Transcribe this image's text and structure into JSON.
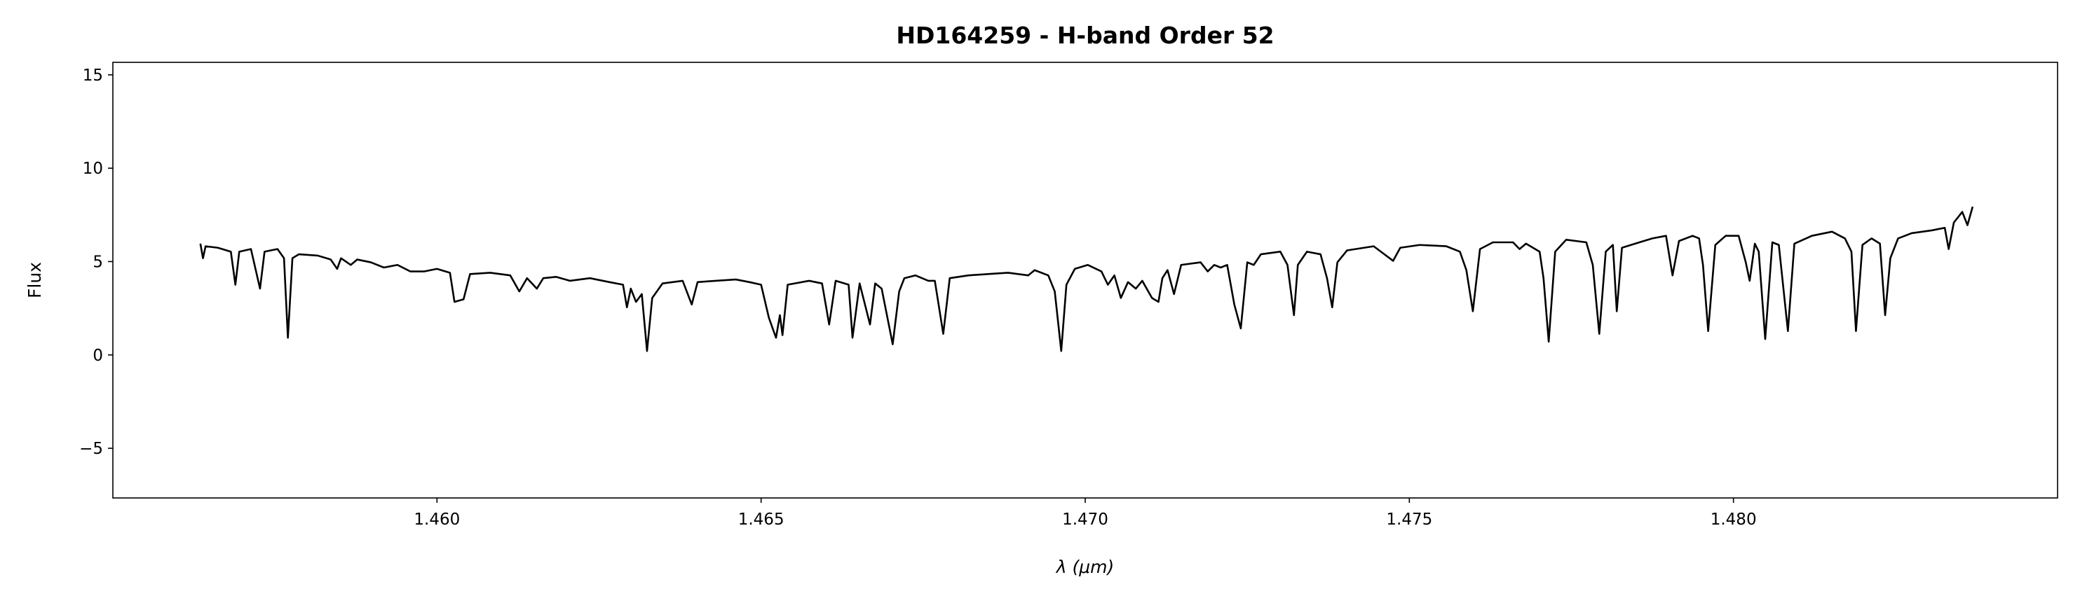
{
  "chart_data": {
    "type": "line",
    "title": "HD164259 - H-band Order 52",
    "xlabel": "λ (μm)",
    "ylabel": "Flux",
    "xlim": [
      1.455,
      1.485
    ],
    "ylim": [
      -7.66,
      15.67
    ],
    "xticks": [
      {
        "value": 1.46,
        "label": "1.460"
      },
      {
        "value": 1.465,
        "label": "1.465"
      },
      {
        "value": 1.47,
        "label": "1.470"
      },
      {
        "value": 1.475,
        "label": "1.475"
      },
      {
        "value": 1.48,
        "label": "1.480"
      }
    ],
    "yticks": [
      {
        "value": -5,
        "label": "−5"
      },
      0,
      5,
      10,
      15
    ],
    "grid": false,
    "series": [
      {
        "color": "#000000",
        "x": [
          1.45635,
          1.45639,
          1.45643,
          1.45662,
          1.45682,
          1.45689,
          1.45695,
          1.45713,
          1.45727,
          1.45734,
          1.45754,
          1.45764,
          1.4577,
          1.45777,
          1.45787,
          1.45816,
          1.45836,
          1.45846,
          1.45852,
          1.45867,
          1.45877,
          1.45898,
          1.45918,
          1.45939,
          1.45959,
          1.4598,
          1.46,
          1.4602,
          1.46027,
          1.46041,
          1.46051,
          1.46082,
          1.46113,
          1.46127,
          1.46139,
          1.46154,
          1.46164,
          1.46184,
          1.46205,
          1.46236,
          1.46266,
          1.46287,
          1.46293,
          1.46299,
          1.46307,
          1.46316,
          1.46324,
          1.46332,
          1.46348,
          1.46379,
          1.46393,
          1.46402,
          1.4643,
          1.46461,
          1.46482,
          1.465,
          1.46512,
          1.46523,
          1.46529,
          1.46533,
          1.46541,
          1.46574,
          1.46594,
          1.46605,
          1.46615,
          1.46635,
          1.46641,
          1.46652,
          1.46668,
          1.46676,
          1.46686,
          1.46703,
          1.46713,
          1.46721,
          1.46738,
          1.46758,
          1.46768,
          1.46781,
          1.46791,
          1.4682,
          1.4685,
          1.46881,
          1.46912,
          1.46922,
          1.46943,
          1.46953,
          1.46963,
          1.46971,
          1.46984,
          1.47004,
          1.47025,
          1.47035,
          1.47045,
          1.47055,
          1.47066,
          1.47078,
          1.47088,
          1.47103,
          1.47113,
          1.47119,
          1.47127,
          1.47137,
          1.47148,
          1.47178,
          1.47189,
          1.47199,
          1.47209,
          1.47219,
          1.4723,
          1.4724,
          1.4725,
          1.4726,
          1.47271,
          1.47301,
          1.47312,
          1.47322,
          1.47328,
          1.47342,
          1.47363,
          1.47373,
          1.47381,
          1.47389,
          1.47404,
          1.47445,
          1.47475,
          1.47486,
          1.47516,
          1.47557,
          1.47578,
          1.47588,
          1.47598,
          1.47609,
          1.47629,
          1.4766,
          1.4767,
          1.4768,
          1.47701,
          1.47707,
          1.47715,
          1.47725,
          1.47742,
          1.47773,
          1.47783,
          1.47793,
          1.47803,
          1.47814,
          1.4782,
          1.47828,
          1.47855,
          1.47875,
          1.47896,
          1.47906,
          1.47916,
          1.47937,
          1.47947,
          1.47953,
          1.47961,
          1.47972,
          1.47988,
          1.48008,
          1.48019,
          1.48025,
          1.48033,
          1.48039,
          1.48049,
          1.4806,
          1.4807,
          1.48084,
          1.48094,
          1.48121,
          1.48152,
          1.48172,
          1.48182,
          1.48189,
          1.48199,
          1.48213,
          1.48226,
          1.48234,
          1.48242,
          1.48254,
          1.48275,
          1.48306,
          1.48326,
          1.48332,
          1.4834,
          1.48353,
          1.48361,
          1.48369
        ],
        "values": [
          5.96,
          5.18,
          5.82,
          5.74,
          5.53,
          3.76,
          5.53,
          5.67,
          3.55,
          5.53,
          5.67,
          5.18,
          0.92,
          5.18,
          5.39,
          5.32,
          5.11,
          4.61,
          5.18,
          4.82,
          5.11,
          4.96,
          4.68,
          4.82,
          4.47,
          4.47,
          4.61,
          4.4,
          2.84,
          2.98,
          4.33,
          4.4,
          4.26,
          3.4,
          4.11,
          3.55,
          4.11,
          4.18,
          3.97,
          4.11,
          3.9,
          3.76,
          2.55,
          3.55,
          2.84,
          3.26,
          0.21,
          3.05,
          3.83,
          3.97,
          2.7,
          3.9,
          3.97,
          4.04,
          3.9,
          3.76,
          1.99,
          0.92,
          2.13,
          1.06,
          3.76,
          3.97,
          3.83,
          1.63,
          3.97,
          3.76,
          0.92,
          3.83,
          1.63,
          3.83,
          3.55,
          0.57,
          3.4,
          4.11,
          4.26,
          3.97,
          3.97,
          1.13,
          4.11,
          4.26,
          4.33,
          4.4,
          4.26,
          4.54,
          4.26,
          3.4,
          0.21,
          3.76,
          4.61,
          4.82,
          4.47,
          3.76,
          4.26,
          3.05,
          3.9,
          3.55,
          3.97,
          3.05,
          2.84,
          4.11,
          4.54,
          3.26,
          4.82,
          4.96,
          4.47,
          4.82,
          4.68,
          4.82,
          2.7,
          1.42,
          4.96,
          4.82,
          5.39,
          5.53,
          4.82,
          2.13,
          4.82,
          5.53,
          5.39,
          4.11,
          2.55,
          4.96,
          5.6,
          5.82,
          5.04,
          5.74,
          5.89,
          5.82,
          5.53,
          4.54,
          2.34,
          5.67,
          6.03,
          6.03,
          5.67,
          5.96,
          5.53,
          4.11,
          0.71,
          5.53,
          6.17,
          6.03,
          4.82,
          1.13,
          5.53,
          5.89,
          2.34,
          5.74,
          6.03,
          6.24,
          6.38,
          4.26,
          6.1,
          6.38,
          6.24,
          4.82,
          1.28,
          5.89,
          6.38,
          6.38,
          4.96,
          3.97,
          5.96,
          5.53,
          0.85,
          6.03,
          5.89,
          1.28,
          5.96,
          6.38,
          6.6,
          6.24,
          5.53,
          1.28,
          5.89,
          6.24,
          5.96,
          2.13,
          5.18,
          6.24,
          6.52,
          6.67,
          6.81,
          5.67,
          7.09,
          7.66,
          6.95,
          7.94
        ]
      }
    ]
  }
}
